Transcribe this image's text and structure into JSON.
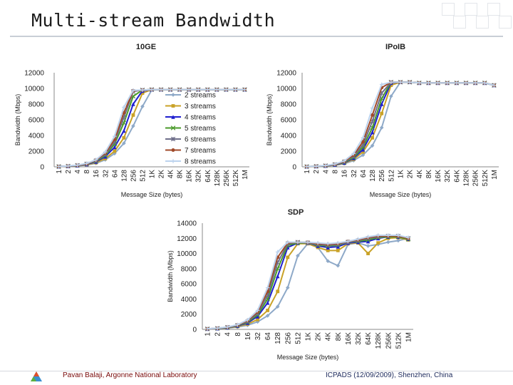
{
  "slide": {
    "title": "Multi-stream Bandwidth",
    "footer_left": "Pavan Balaji, Argonne National Laboratory",
    "footer_right": "ICPADS (12/09/2009), Shenzhen, China"
  },
  "chart_data": [
    {
      "id": "tenge",
      "type": "line",
      "title": "10GE",
      "xlabel": "Message Size (bytes)",
      "ylabel": "Bandwidth (Mbps)",
      "ylim": [
        0,
        12000
      ],
      "yticks": [
        0,
        2000,
        4000,
        6000,
        8000,
        10000,
        12000
      ],
      "categories": [
        "1",
        "2",
        "4",
        "8",
        "16",
        "32",
        "64",
        "128",
        "256",
        "512",
        "1K",
        "2K",
        "4K",
        "8K",
        "16K",
        "32K",
        "64K",
        "128K",
        "256K",
        "512K",
        "1M"
      ],
      "legend": "center-right",
      "series": [
        {
          "name": "2 streams",
          "values": [
            30,
            60,
            120,
            230,
            450,
            900,
            1700,
            3000,
            5200,
            7700,
            9800,
            9850,
            9850,
            9850,
            9850,
            9850,
            9850,
            9850,
            9850,
            9850,
            9850
          ]
        },
        {
          "name": "3 streams",
          "values": [
            30,
            70,
            140,
            270,
            530,
            1060,
            2000,
            3700,
            6600,
            9400,
            9850,
            9850,
            9850,
            9850,
            9850,
            9850,
            9850,
            9850,
            9850,
            9850,
            9850
          ]
        },
        {
          "name": "4 streams",
          "values": [
            40,
            80,
            160,
            320,
            640,
            1300,
            2500,
            4600,
            8000,
            9700,
            9850,
            9850,
            9850,
            9850,
            9850,
            9850,
            9850,
            9850,
            9850,
            9850,
            9850
          ]
        },
        {
          "name": "5 streams",
          "values": [
            40,
            90,
            180,
            360,
            720,
            1450,
            2900,
            5600,
            9000,
            9800,
            9850,
            9850,
            9850,
            9850,
            9850,
            9850,
            9850,
            9850,
            9850,
            9850,
            9850
          ]
        },
        {
          "name": "6 streams",
          "values": [
            40,
            90,
            190,
            380,
            780,
            1600,
            3200,
            6300,
            9600,
            9800,
            9850,
            9850,
            9850,
            9850,
            9850,
            9850,
            9850,
            9850,
            9850,
            9850,
            9850
          ]
        },
        {
          "name": "7 streams",
          "values": [
            45,
            100,
            200,
            400,
            850,
            1750,
            3500,
            6900,
            9700,
            9800,
            9850,
            9850,
            9850,
            9850,
            9850,
            9850,
            9850,
            9850,
            9850,
            9850,
            9850
          ]
        },
        {
          "name": "8 streams",
          "values": [
            50,
            110,
            220,
            450,
            900,
            1900,
            3900,
            7600,
            9750,
            9800,
            9850,
            9850,
            9850,
            9850,
            9850,
            9850,
            9850,
            9850,
            9850,
            9850,
            9850
          ]
        }
      ]
    },
    {
      "id": "ipoib",
      "type": "line",
      "title": "IPoIB",
      "xlabel": "Message Size (bytes)",
      "ylabel": "Bandwidth (Mbps)",
      "ylim": [
        0,
        12000
      ],
      "yticks": [
        0,
        2000,
        4000,
        6000,
        8000,
        10000,
        12000
      ],
      "categories": [
        "1",
        "2",
        "4",
        "8",
        "16",
        "32",
        "64",
        "128",
        "256",
        "512",
        "1K",
        "2K",
        "4K",
        "8K",
        "16K",
        "32K",
        "64K",
        "128K",
        "256K",
        "512K",
        "1M"
      ],
      "series": [
        {
          "name": "2 streams",
          "values": [
            20,
            50,
            100,
            200,
            400,
            800,
            1500,
            2700,
            5000,
            9000,
            10800,
            10800,
            10700,
            10700,
            10700,
            10700,
            10700,
            10700,
            10700,
            10700,
            10400
          ]
        },
        {
          "name": "3 streams",
          "values": [
            25,
            55,
            110,
            230,
            460,
            950,
            1900,
            3700,
            6800,
            10400,
            10800,
            10800,
            10700,
            10700,
            10700,
            10700,
            10700,
            10700,
            10700,
            10700,
            10400
          ]
        },
        {
          "name": "4 streams",
          "values": [
            30,
            60,
            130,
            260,
            520,
            1100,
            2200,
            4400,
            8000,
            10700,
            10800,
            10800,
            10700,
            10700,
            10700,
            10700,
            10700,
            10700,
            10700,
            10700,
            10400
          ]
        },
        {
          "name": "5 streams",
          "values": [
            30,
            70,
            140,
            290,
            580,
            1200,
            2500,
            5000,
            8700,
            10800,
            10800,
            10800,
            10700,
            10700,
            10700,
            10700,
            10700,
            10700,
            10700,
            10700,
            10400
          ]
        },
        {
          "name": "6 streams",
          "values": [
            30,
            70,
            150,
            300,
            640,
            1350,
            2800,
            5800,
            9400,
            10800,
            10800,
            10800,
            10700,
            10700,
            10700,
            10700,
            10700,
            10700,
            10700,
            10700,
            10400
          ]
        },
        {
          "name": "7 streams",
          "values": [
            35,
            75,
            160,
            330,
            700,
            1500,
            3200,
            6600,
            10100,
            10800,
            10800,
            10800,
            10700,
            10700,
            10700,
            10700,
            10700,
            10700,
            10700,
            10700,
            10400
          ]
        },
        {
          "name": "8 streams",
          "values": [
            40,
            80,
            170,
            360,
            760,
            1700,
            3700,
            7500,
            10500,
            10800,
            10800,
            10800,
            10700,
            10700,
            10700,
            10700,
            10700,
            10700,
            10700,
            10700,
            10400
          ]
        }
      ]
    },
    {
      "id": "sdp",
      "type": "line",
      "title": "SDP",
      "xlabel": "Message Size (bytes)",
      "ylabel": "Bandwidth (Mbps)",
      "ylim": [
        0,
        14000
      ],
      "yticks": [
        0,
        2000,
        4000,
        6000,
        8000,
        10000,
        12000,
        14000
      ],
      "categories": [
        "1",
        "2",
        "4",
        "8",
        "16",
        "32",
        "64",
        "128",
        "256",
        "512",
        "1K",
        "2K",
        "4K",
        "8K",
        "16K",
        "32K",
        "64K",
        "128K",
        "256K",
        "512K",
        "1M"
      ],
      "series": [
        {
          "name": "2 streams",
          "values": [
            40,
            80,
            160,
            300,
            550,
            1000,
            1800,
            3000,
            5500,
            9700,
            11300,
            10800,
            9000,
            8400,
            11200,
            11400,
            11000,
            11200,
            11500,
            11700,
            12000
          ]
        },
        {
          "name": "3 streams",
          "values": [
            50,
            100,
            200,
            380,
            700,
            1300,
            2500,
            5000,
            9500,
            11300,
            11300,
            10800,
            10400,
            10400,
            11300,
            11400,
            10000,
            11400,
            12000,
            12100,
            11800
          ]
        },
        {
          "name": "4 streams",
          "values": [
            60,
            120,
            240,
            460,
            850,
            1700,
            3500,
            7000,
            10800,
            11400,
            11400,
            11000,
            10800,
            10900,
            11400,
            11500,
            11600,
            12000,
            12200,
            12200,
            11900
          ]
        },
        {
          "name": "5 streams",
          "values": [
            65,
            130,
            260,
            500,
            950,
            1900,
            4000,
            8000,
            11100,
            11400,
            11400,
            11100,
            11000,
            11100,
            11500,
            11600,
            11800,
            12100,
            12200,
            12200,
            11900
          ]
        },
        {
          "name": "6 streams",
          "values": [
            70,
            140,
            280,
            540,
            1050,
            2100,
            4500,
            8800,
            11300,
            11500,
            11400,
            11200,
            11100,
            11200,
            11500,
            11700,
            12000,
            12200,
            12300,
            12300,
            12000
          ]
        },
        {
          "name": "7 streams",
          "values": [
            75,
            150,
            300,
            580,
            1150,
            2300,
            5000,
            9500,
            11400,
            11500,
            11500,
            11300,
            11200,
            11300,
            11600,
            11800,
            12100,
            12300,
            12300,
            12300,
            12000
          ]
        },
        {
          "name": "8 streams",
          "values": [
            80,
            160,
            320,
            620,
            1250,
            2500,
            5500,
            10200,
            11500,
            11500,
            11500,
            11400,
            11300,
            11400,
            11600,
            11900,
            12200,
            12400,
            12400,
            12400,
            12100
          ]
        }
      ]
    }
  ],
  "series_style": {
    "colors": [
      "#8ea9c8",
      "#c9a227",
      "#1f1fcf",
      "#4a9a2a",
      "#6e6e8a",
      "#a04a2a",
      "#bcd3ee"
    ],
    "markers": [
      "diamond",
      "square",
      "triangle",
      "x",
      "star",
      "circle",
      "plus"
    ]
  }
}
